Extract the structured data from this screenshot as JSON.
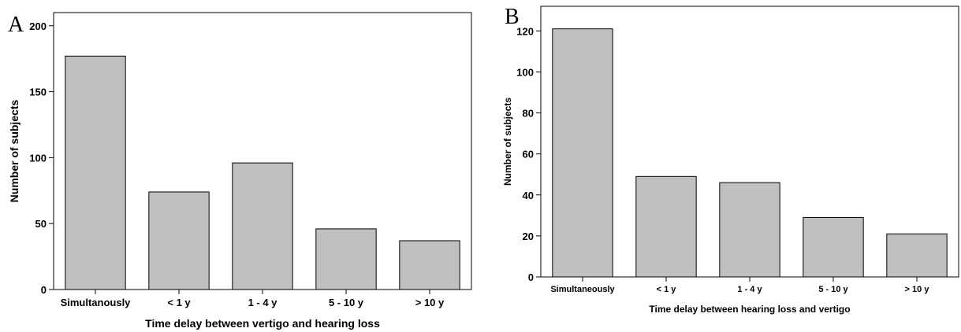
{
  "colors": {
    "bar_fill": "#c0c0c0",
    "bar_stroke": "#000000",
    "frame": "#000000"
  },
  "chart_data": [
    {
      "type": "bar",
      "panel_label": "A",
      "categories": [
        "Simultanously",
        "< 1 y",
        "1 - 4 y",
        "5 - 10 y",
        "> 10 y"
      ],
      "values": [
        177,
        74,
        96,
        46,
        37
      ],
      "xlabel": "Time delay between vertigo and hearing loss",
      "ylabel": "Number of subjects",
      "ylim": [
        0,
        210
      ],
      "yticks": [
        0,
        50,
        100,
        150,
        200
      ],
      "grid": false
    },
    {
      "type": "bar",
      "panel_label": "B",
      "categories": [
        "Simultaneously",
        "< 1 y",
        "1 - 4 y",
        "5 - 10 y",
        "> 10 y"
      ],
      "values": [
        121,
        49,
        46,
        29,
        21
      ],
      "xlabel": "Time delay between hearing loss and vertigo",
      "ylabel": "Number of subjects",
      "ylim": [
        0,
        132
      ],
      "yticks": [
        0,
        20,
        40,
        60,
        80,
        100,
        120
      ],
      "grid": false
    }
  ]
}
